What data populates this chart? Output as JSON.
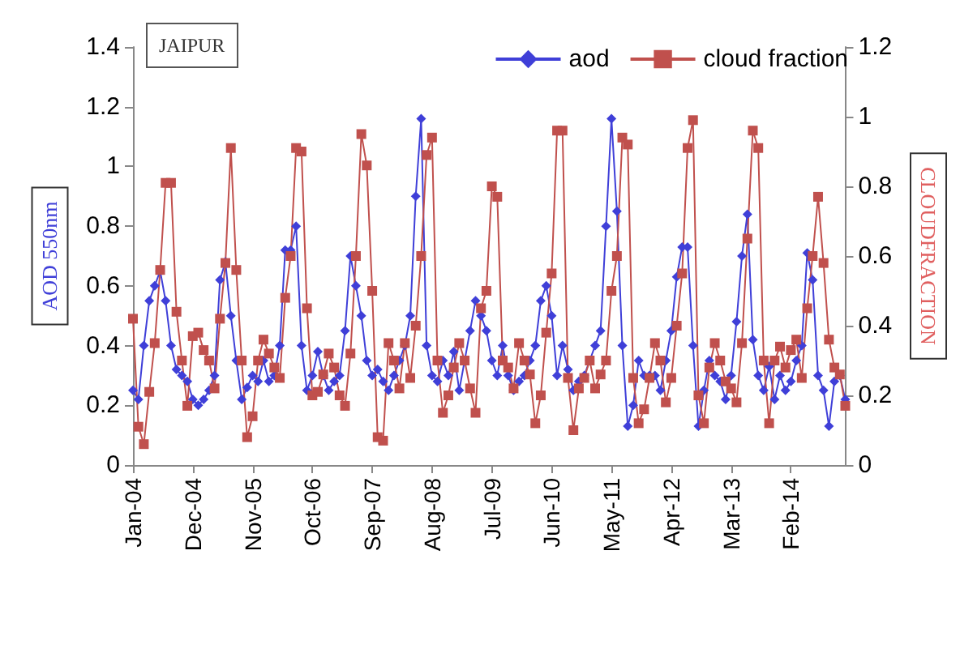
{
  "chart_data": {
    "type": "line",
    "title": "JAIPUR",
    "ylabel": "AOD 550nm",
    "y2label": "CLOUDFRACTION",
    "categories": [
      "Jan-04",
      null,
      null,
      null,
      null,
      null,
      null,
      null,
      null,
      null,
      null,
      "Dec-04",
      null,
      null,
      null,
      null,
      null,
      null,
      null,
      null,
      null,
      null,
      "Nov-05",
      null,
      null,
      null,
      null,
      null,
      null,
      null,
      null,
      null,
      null,
      "Oct-06",
      null,
      null,
      null,
      null,
      null,
      null,
      null,
      null,
      null,
      null,
      "Sep-07",
      null,
      null,
      null,
      null,
      null,
      null,
      null,
      null,
      null,
      null,
      "Aug-08",
      null,
      null,
      null,
      null,
      null,
      null,
      null,
      null,
      null,
      null,
      "Jul-09",
      null,
      null,
      null,
      null,
      null,
      null,
      null,
      null,
      null,
      null,
      "Jun-10",
      null,
      null,
      null,
      null,
      null,
      null,
      null,
      null,
      null,
      null,
      "May-11",
      null,
      null,
      null,
      null,
      null,
      null,
      null,
      null,
      null,
      null,
      "Apr-12",
      null,
      null,
      null,
      null,
      null,
      null,
      null,
      null,
      null,
      null,
      "Mar-13",
      null,
      null,
      null,
      null,
      null,
      null,
      null,
      null,
      null,
      null,
      "Feb-14",
      null,
      null,
      null,
      null,
      null,
      null,
      null,
      null,
      null,
      null
    ],
    "series": [
      {
        "name": "aod",
        "color": "#3f3fd8",
        "marker": "diamond",
        "values": [
          0.25,
          0.22,
          0.4,
          0.55,
          0.6,
          0.65,
          0.55,
          0.4,
          0.32,
          0.3,
          0.28,
          0.22,
          0.2,
          0.22,
          0.25,
          0.3,
          0.62,
          0.68,
          0.5,
          0.35,
          0.22,
          0.26,
          0.3,
          0.28,
          0.35,
          0.28,
          0.3,
          0.4,
          0.72,
          0.72,
          0.8,
          0.4,
          0.25,
          0.3,
          0.38,
          0.3,
          0.25,
          0.28,
          0.3,
          0.45,
          0.7,
          0.6,
          0.5,
          0.35,
          0.3,
          0.32,
          0.28,
          0.25,
          0.3,
          0.35,
          0.4,
          0.5,
          0.9,
          1.16,
          0.4,
          0.3,
          0.28,
          0.35,
          0.3,
          0.38,
          0.25,
          0.35,
          0.45,
          0.55,
          0.5,
          0.45,
          0.35,
          0.3,
          0.4,
          0.3,
          0.25,
          0.28,
          0.3,
          0.35,
          0.4,
          0.55,
          0.6,
          0.5,
          0.3,
          0.4,
          0.32,
          0.25,
          0.28,
          0.3,
          0.35,
          0.4,
          0.45,
          0.8,
          1.16,
          0.85,
          0.4,
          0.13,
          0.2,
          0.35,
          0.3,
          0.3,
          0.3,
          0.25,
          0.35,
          0.45,
          0.63,
          0.73,
          0.73,
          0.4,
          0.13,
          0.25,
          0.35,
          0.3,
          0.28,
          0.22,
          0.3,
          0.48,
          0.7,
          0.84,
          0.42,
          0.3,
          0.25,
          0.33,
          0.22,
          0.3,
          0.25,
          0.28,
          0.35,
          0.4,
          0.71,
          0.62,
          0.3,
          0.25,
          0.13,
          0.28,
          0.3,
          0.22
        ]
      },
      {
        "name": "cloud fraction",
        "color": "#c0504d",
        "marker": "square",
        "axis": "y2",
        "values": [
          0.42,
          0.11,
          0.06,
          0.21,
          0.35,
          0.56,
          0.81,
          0.81,
          0.44,
          0.3,
          0.17,
          0.37,
          0.38,
          0.33,
          0.3,
          0.22,
          0.42,
          0.58,
          0.91,
          0.56,
          0.3,
          0.08,
          0.14,
          0.3,
          0.36,
          0.32,
          0.28,
          0.25,
          0.48,
          0.6,
          0.91,
          0.9,
          0.45,
          0.2,
          0.21,
          0.26,
          0.32,
          0.28,
          0.2,
          0.17,
          0.32,
          0.6,
          0.95,
          0.86,
          0.5,
          0.08,
          0.07,
          0.35,
          0.3,
          0.22,
          0.35,
          0.25,
          0.4,
          0.6,
          0.89,
          0.94,
          0.3,
          0.15,
          0.2,
          0.28,
          0.35,
          0.3,
          0.22,
          0.15,
          0.45,
          0.5,
          0.8,
          0.77,
          0.3,
          0.28,
          0.22,
          0.35,
          0.3,
          0.26,
          0.12,
          0.2,
          0.38,
          0.55,
          0.96,
          0.96,
          0.25,
          0.1,
          0.22,
          0.25,
          0.3,
          0.22,
          0.26,
          0.3,
          0.5,
          0.6,
          0.94,
          0.92,
          0.25,
          0.12,
          0.16,
          0.25,
          0.35,
          0.3,
          0.18,
          0.25,
          0.4,
          0.55,
          0.91,
          0.99,
          0.2,
          0.12,
          0.28,
          0.35,
          0.3,
          0.24,
          0.22,
          0.18,
          0.35,
          0.65,
          0.96,
          0.91,
          0.3,
          0.12,
          0.3,
          0.34,
          0.28,
          0.33,
          0.36,
          0.25,
          0.45,
          0.6,
          0.77,
          0.58,
          0.36,
          0.28,
          0.26,
          0.17
        ]
      }
    ],
    "ylim": [
      0,
      1.4
    ],
    "yticks": [
      0,
      0.2,
      0.4,
      0.6,
      0.8,
      1,
      1.2,
      1.4
    ],
    "y2lim": [
      0,
      1.2
    ],
    "y2ticks": [
      0,
      0.2,
      0.4,
      0.6,
      0.8,
      1,
      1.2
    ],
    "legend": "top right",
    "grid": false,
    "line_style": "solid"
  }
}
